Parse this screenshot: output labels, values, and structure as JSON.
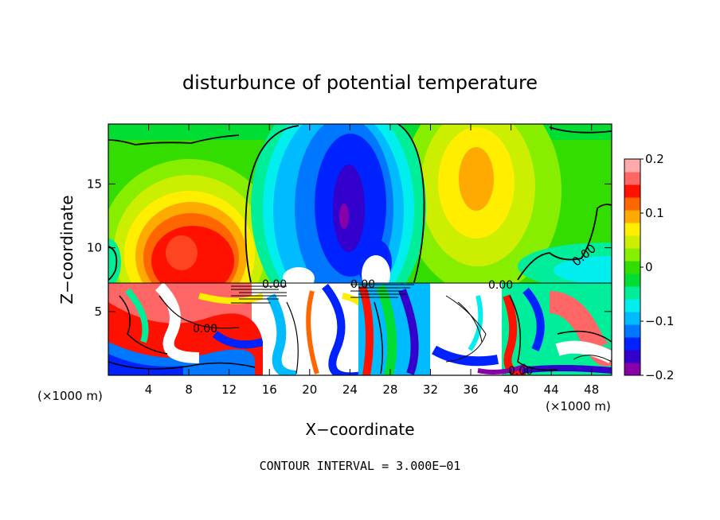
{
  "chart_data": {
    "type": "heatmap",
    "title": "disturbunce of potential temperature",
    "xlabel": "X−coordinate",
    "ylabel": "Z−coordinate",
    "x_unit": "(×1000 m)",
    "y_unit": "(×1000 m)",
    "x_ticks": [
      4,
      8,
      12,
      16,
      20,
      24,
      28,
      32,
      36,
      40,
      44,
      48
    ],
    "y_ticks": [
      5,
      10,
      15
    ],
    "xlim": [
      0,
      50
    ],
    "ylim": [
      0,
      19.7
    ],
    "colorbar": {
      "min": -0.2,
      "max": 0.2,
      "tick_values": [
        0.2,
        0.1,
        0,
        -0.1,
        -0.2
      ],
      "tick_labels": [
        "0.2",
        "0.1",
        "0",
        "−0.1",
        "−0.2"
      ],
      "colors": [
        "#8800aa",
        "#3300cc",
        "#0022ff",
        "#0077ff",
        "#00bbff",
        "#00eeee",
        "#00ee99",
        "#00dd33",
        "#33dd00",
        "#88ee00",
        "#ccee00",
        "#ffee00",
        "#ffaa00",
        "#ff6600",
        "#ff1100",
        "#ff6666",
        "#ffaaaa"
      ]
    },
    "contour_labels": [
      {
        "text": "0.00",
        "x": 38.3,
        "z": 10.5
      },
      {
        "text": "0.00",
        "x": 16.8,
        "z": 7.3
      },
      {
        "text": "0.00",
        "x": 25.0,
        "z": 7.3
      },
      {
        "text": "0.00",
        "x": 38.5,
        "z": 7.2
      },
      {
        "text": "0.00",
        "x": 9.6,
        "z": 3.8
      },
      {
        "text": "0.00",
        "x": 40.8,
        "z": 0.4
      }
    ],
    "contour_interval_text": "CONTOUR INTERVAL = 3.000E−01"
  }
}
